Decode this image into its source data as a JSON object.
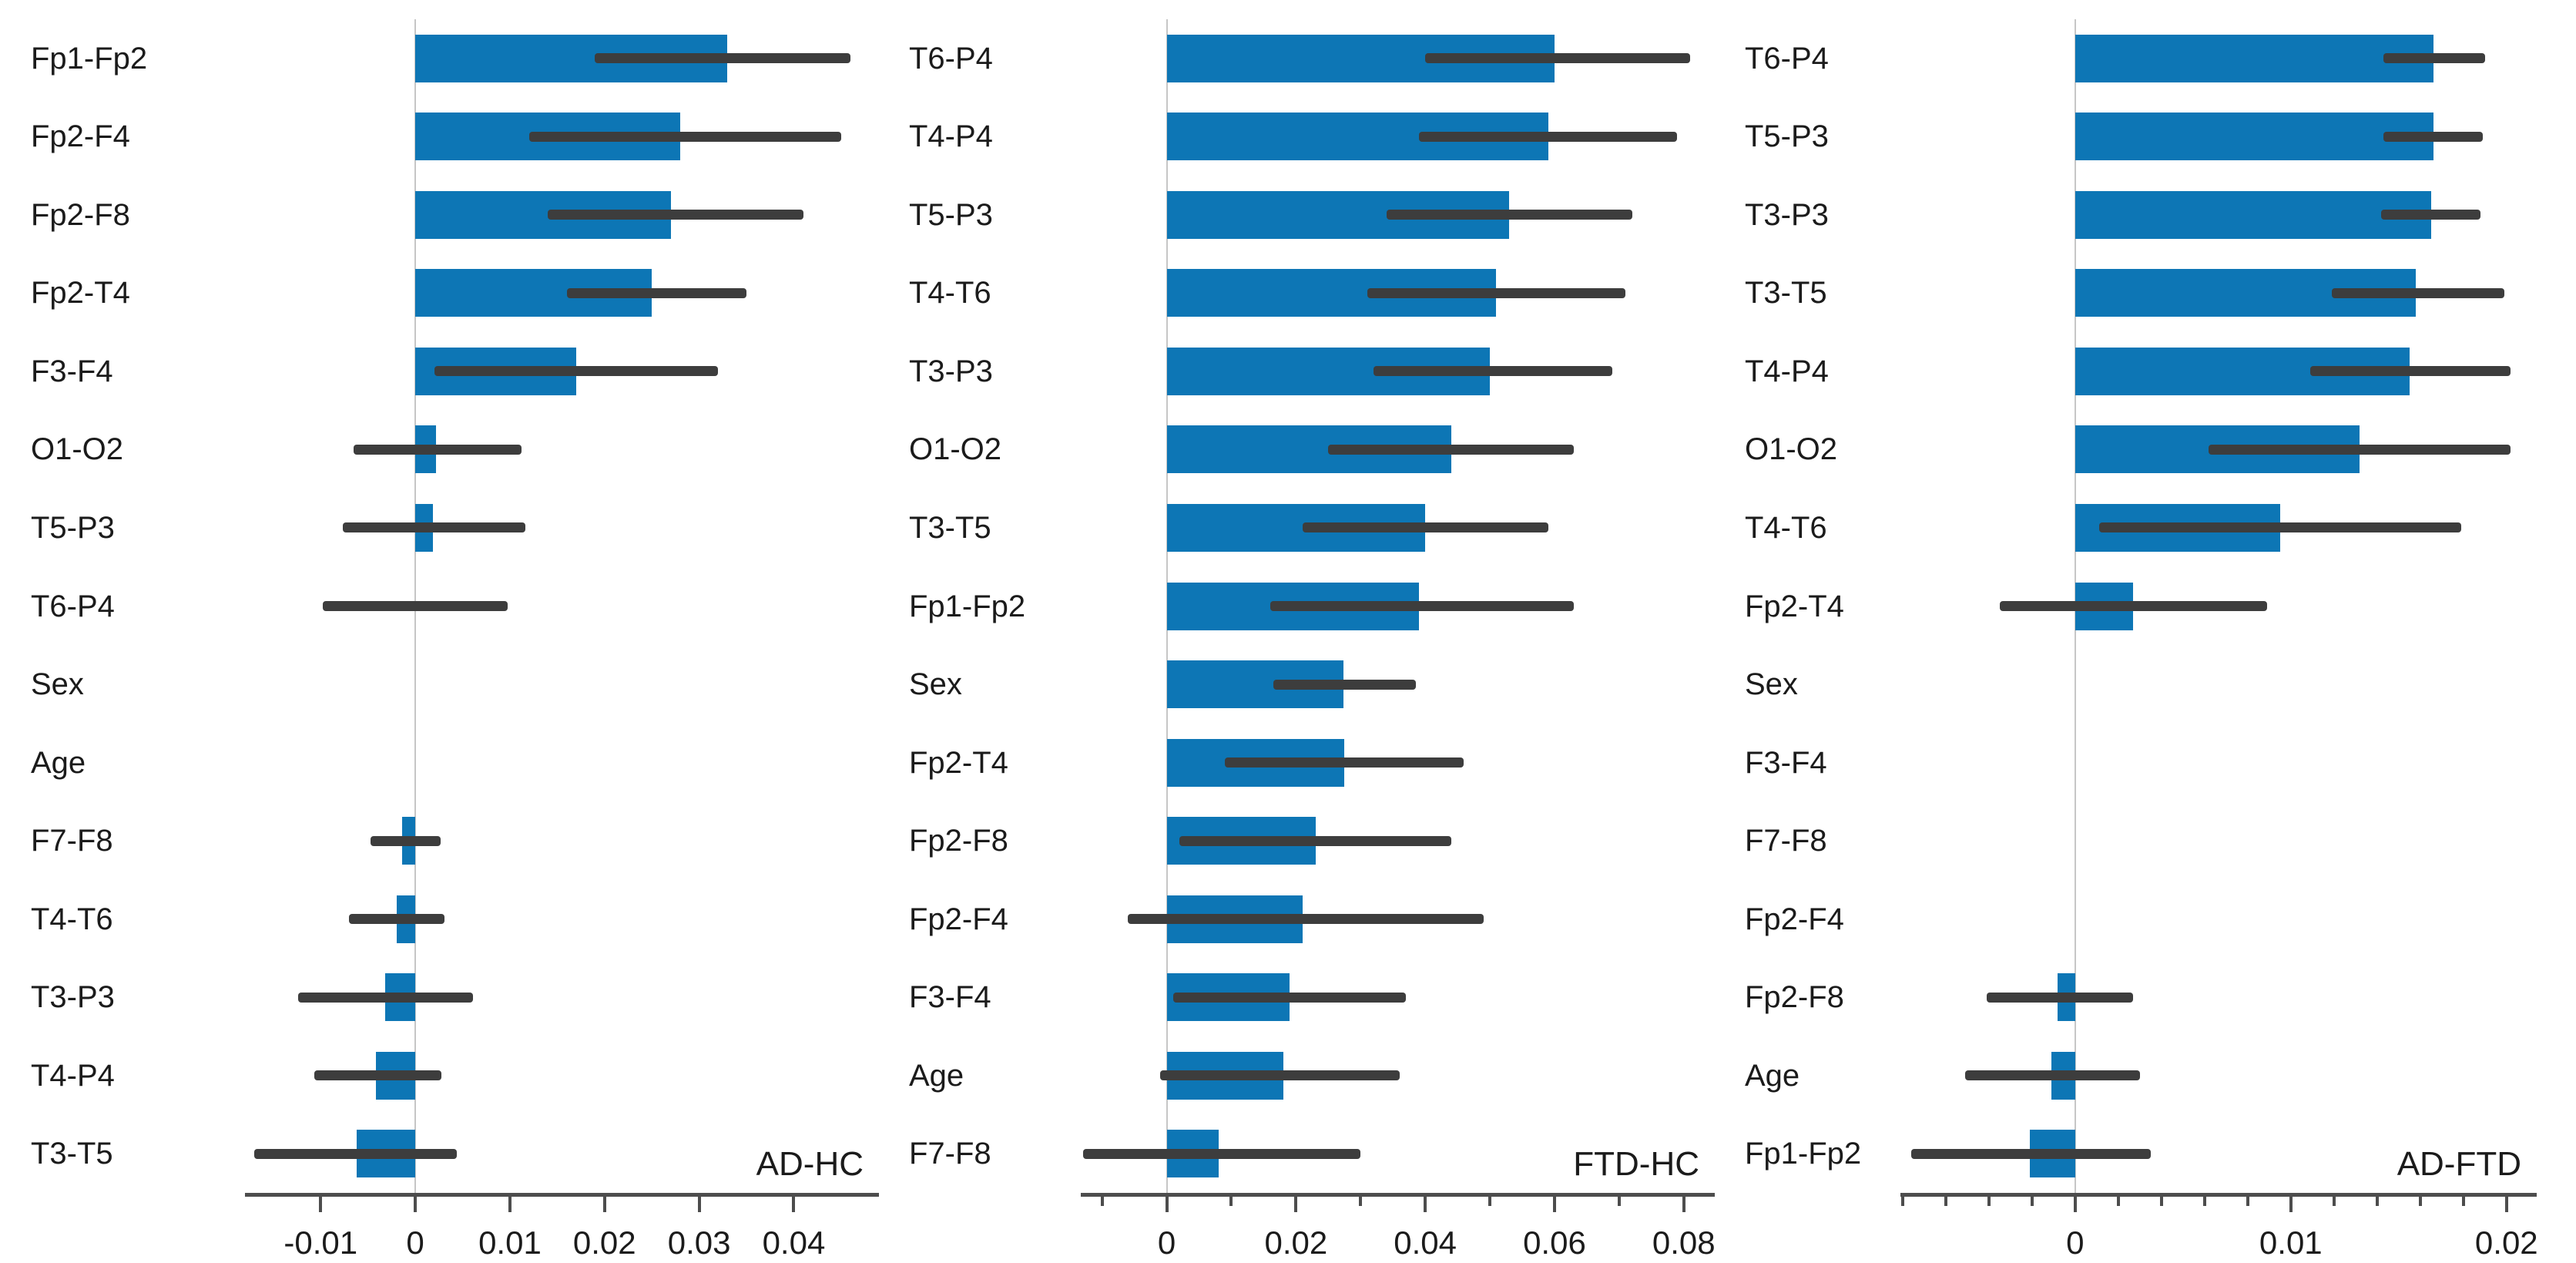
{
  "colors": {
    "bar": "#0d76b5",
    "error_bar": "#3d3d3d",
    "axis": "#4d4d4d",
    "zero_line": "#c6c6c6",
    "text": "#1b1b1b"
  },
  "chart_data": [
    {
      "type": "bar",
      "orientation": "horizontal",
      "panel_label": "AD-HC",
      "xlabel": "",
      "ylabel": "",
      "xlim": [
        -0.018,
        0.049
      ],
      "grid": "zero-line-only",
      "legend": "none",
      "categories": [
        "Fp1-Fp2",
        "Fp2-F4",
        "Fp2-F8",
        "Fp2-T4",
        "F3-F4",
        "O1-O2",
        "T5-P3",
        "T6-P4",
        "Sex",
        "Age",
        "F7-F8",
        "T4-T6",
        "T3-P3",
        "T4-P4",
        "T3-T5"
      ],
      "values": [
        0.033,
        0.028,
        0.027,
        0.025,
        0.017,
        0.0022,
        0.0019,
        0.0,
        0.0,
        0.0,
        -0.0014,
        -0.002,
        -0.0032,
        -0.0042,
        -0.0062
      ],
      "ci_low": [
        0.019,
        0.012,
        0.014,
        0.016,
        0.002,
        -0.0065,
        -0.0077,
        -0.0098,
        null,
        null,
        -0.0047,
        -0.007,
        -0.0124,
        -0.0107,
        -0.017
      ],
      "ci_high": [
        0.046,
        0.045,
        0.041,
        0.035,
        0.032,
        0.0112,
        0.0116,
        0.0098,
        null,
        null,
        0.0027,
        0.0031,
        0.0061,
        0.0028,
        0.0044
      ],
      "xtick_values": [
        -0.01,
        0,
        0.01,
        0.02,
        0.03,
        0.04
      ],
      "xtick_labels": [
        "-0.01",
        "0",
        "0.01",
        "0.02",
        "0.03",
        "0.04"
      ],
      "minor_tick_values": []
    },
    {
      "type": "bar",
      "orientation": "horizontal",
      "panel_label": "FTD-HC",
      "xlabel": "",
      "ylabel": "",
      "xlim": [
        -0.0133,
        0.0848
      ],
      "grid": "zero-line-only",
      "legend": "none",
      "categories": [
        "T6-P4",
        "T4-P4",
        "T5-P3",
        "T4-T6",
        "T3-P3",
        "O1-O2",
        "T3-T5",
        "Fp1-Fp2",
        "Sex",
        "Fp2-T4",
        "Fp2-F8",
        "Fp2-F4",
        "F3-F4",
        "Age",
        "F7-F8"
      ],
      "values": [
        0.06,
        0.059,
        0.053,
        0.051,
        0.05,
        0.044,
        0.04,
        0.039,
        0.0273,
        0.0275,
        0.023,
        0.021,
        0.019,
        0.018,
        0.008
      ],
      "ci_low": [
        0.04,
        0.039,
        0.034,
        0.031,
        0.032,
        0.025,
        0.021,
        0.016,
        0.0165,
        0.009,
        0.002,
        -0.006,
        0.001,
        -0.001,
        -0.013
      ],
      "ci_high": [
        0.081,
        0.079,
        0.072,
        0.071,
        0.069,
        0.063,
        0.059,
        0.063,
        0.0385,
        0.046,
        0.044,
        0.049,
        0.037,
        0.036,
        0.03
      ],
      "xtick_values": [
        0,
        0.02,
        0.04,
        0.06,
        0.08
      ],
      "xtick_labels": [
        "0",
        "0.02",
        "0.04",
        "0.06",
        "0.08"
      ],
      "minor_tick_values": [
        -0.01,
        0.01,
        0.03,
        0.05,
        0.07
      ]
    },
    {
      "type": "bar",
      "orientation": "horizontal",
      "panel_label": "AD-FTD",
      "xlabel": "",
      "ylabel": "",
      "xlim": [
        -0.0081,
        0.0214
      ],
      "grid": "zero-line-only",
      "legend": "none",
      "categories": [
        "T6-P4",
        "T5-P3",
        "T3-P3",
        "T3-T5",
        "T4-P4",
        "O1-O2",
        "T4-T6",
        "Fp2-T4",
        "Sex",
        "F3-F4",
        "F7-F8",
        "Fp2-F4",
        "Fp2-F8",
        "Age",
        "Fp1-Fp2"
      ],
      "values": [
        0.0166,
        0.0166,
        0.0165,
        0.0158,
        0.0155,
        0.0132,
        0.0095,
        0.0027,
        0.0,
        0.0,
        0.0,
        0.0,
        -0.0008,
        -0.0011,
        -0.0021
      ],
      "ci_low": [
        0.0143,
        0.0143,
        0.0142,
        0.0119,
        0.0109,
        0.0062,
        0.0011,
        -0.0035,
        null,
        null,
        null,
        null,
        -0.0041,
        -0.0051,
        -0.0076
      ],
      "ci_high": [
        0.019,
        0.0189,
        0.0188,
        0.0199,
        0.0202,
        0.0202,
        0.0179,
        0.0089,
        null,
        null,
        null,
        null,
        0.0027,
        0.003,
        0.0035
      ],
      "xtick_values": [
        0,
        0.01,
        0.02
      ],
      "xtick_labels": [
        "0",
        "0.01",
        "0.02"
      ],
      "minor_tick_values": [
        -0.008,
        -0.006,
        -0.004,
        -0.002,
        0.002,
        0.004,
        0.006,
        0.008,
        0.012,
        0.014,
        0.016,
        0.018
      ]
    }
  ]
}
